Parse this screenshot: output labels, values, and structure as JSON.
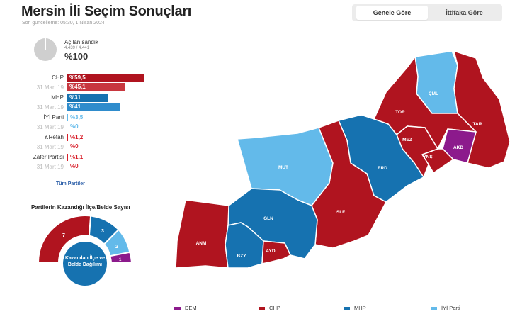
{
  "header": {
    "title": "Mersin İli Seçim Sonuçları",
    "updated": "Son güncelleme: 05:30, 1 Nisan 2024"
  },
  "toggle": {
    "general": "Genele Göre",
    "alliance": "İttifaka Göre"
  },
  "ballot_box": {
    "label": "Açılan sandık",
    "count": "4.439 / 4.441",
    "percent": "%100",
    "opened_fraction": 1.0
  },
  "colors": {
    "chp": "#b0141f",
    "chp_prev": "#c8373f",
    "mhp": "#1672b0",
    "mhp_prev": "#2f8ccc",
    "iyi": "#63baea",
    "dem": "#8c1a8c",
    "red_thin": "#d81f2a"
  },
  "parties": [
    {
      "name": "CHP",
      "current": "%59,5",
      "prev_label": "31 Mart 19",
      "previous": "%45,1",
      "current_value": 59.5,
      "previous_value": 45.1
    },
    {
      "name": "MHP",
      "current": "%31",
      "prev_label": "31 Mart 19",
      "previous": "%41",
      "current_value": 31,
      "previous_value": 41
    },
    {
      "name": "İYİ Parti",
      "current": "%3,5",
      "prev_label": "31 Mart 19",
      "previous": "%0",
      "current_value": 3.5,
      "previous_value": 0
    },
    {
      "name": "Y.Refah",
      "current": "%1,2",
      "prev_label": "31 Mart 19",
      "previous": "%0",
      "current_value": 1.2,
      "previous_value": 0
    },
    {
      "name": "Zafer Partisi",
      "current": "%1,1",
      "prev_label": "31 Mart 19",
      "previous": "%0",
      "current_value": 1.1,
      "previous_value": 0
    }
  ],
  "all_parties_link": "Tüm Partiler",
  "district_chart": {
    "title": "Partilerin Kazandığı İlçe/Belde Sayısı",
    "center_label": "Kazanılan İlçe ve Belde Dağılımı",
    "segments": [
      {
        "party": "CHP",
        "count": "7"
      },
      {
        "party": "MHP",
        "count": "3"
      },
      {
        "party": "İYİ Parti",
        "count": "2"
      },
      {
        "party": "DEM",
        "count": "1"
      }
    ]
  },
  "map": {
    "districts": [
      {
        "code": "ÇML",
        "party": "İYİ Parti"
      },
      {
        "code": "TOR",
        "party": "CHP"
      },
      {
        "code": "TAR",
        "party": "CHP"
      },
      {
        "code": "MEZ",
        "party": "CHP"
      },
      {
        "code": "YNŞ",
        "party": "CHP"
      },
      {
        "code": "AKD",
        "party": "DEM"
      },
      {
        "code": "ERD",
        "party": "MHP"
      },
      {
        "code": "MUT",
        "party": "İYİ Parti"
      },
      {
        "code": "SLF",
        "party": "CHP"
      },
      {
        "code": "GLN",
        "party": "MHP"
      },
      {
        "code": "ANM",
        "party": "CHP"
      },
      {
        "code": "BZY",
        "party": "MHP"
      },
      {
        "code": "AYD",
        "party": "CHP"
      }
    ]
  },
  "legend": [
    {
      "label": "DEM",
      "color": "#8c1a8c"
    },
    {
      "label": "CHP",
      "color": "#b0141f"
    },
    {
      "label": "MHP",
      "color": "#1672b0"
    },
    {
      "label": "İYİ Parti",
      "color": "#63baea"
    }
  ]
}
